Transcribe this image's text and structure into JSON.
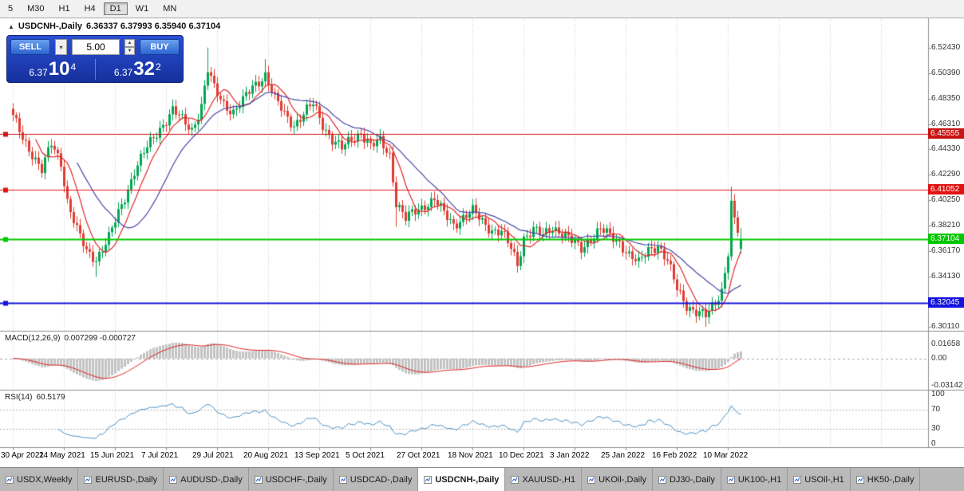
{
  "icons": {
    "collapse": "▲",
    "dropdown": "▾",
    "spin_up": "▲",
    "spin_down": "▼"
  },
  "toolbar": {
    "timeframes": [
      "5",
      "M30",
      "H1",
      "H4",
      "D1",
      "W1",
      "MN"
    ],
    "active": "D1"
  },
  "chart_header": {
    "title": "USDCNH-,Daily",
    "ohlc": "6.36337 6.37993 6.35940 6.37104"
  },
  "trade_panel": {
    "sell_label": "SELL",
    "buy_label": "BUY",
    "volume": "5.00",
    "sell_price": {
      "small": "6.37",
      "big": "10",
      "sup": "4"
    },
    "buy_price": {
      "small": "6.37",
      "big": "32",
      "sup": "2"
    }
  },
  "price_axis": {
    "labels": [
      [
        "6.52430",
        6.5243
      ],
      [
        "6.50390",
        6.5039
      ],
      [
        "6.48350",
        6.4835
      ],
      [
        "6.46310",
        6.4631
      ],
      [
        "6.44330",
        6.4433
      ],
      [
        "6.42290",
        6.4229
      ],
      [
        "6.40250",
        6.4025
      ],
      [
        "6.38210",
        6.3821
      ],
      [
        "6.36170",
        6.3617
      ],
      [
        "6.34130",
        6.3413
      ],
      [
        "6.32110",
        6.3211
      ],
      [
        "6.30110",
        6.3011
      ]
    ]
  },
  "macd_panel": {
    "name": "MACD(12,26,9)",
    "values": "0.007299 -0.000727",
    "axis": [
      [
        "0.01658",
        0.01658
      ],
      [
        "0.00",
        0
      ],
      [
        "-0.03142",
        -0.03142
      ]
    ]
  },
  "rsi_panel": {
    "name": "RSI(14)",
    "value": "60.5179",
    "axis": [
      [
        "100",
        100
      ],
      [
        "70",
        70
      ],
      [
        "30",
        30
      ],
      [
        "0",
        0
      ]
    ],
    "levels": [
      70,
      30
    ]
  },
  "date_axis": {
    "ticks": [
      {
        "label": "30 Apr 2021",
        "i": 0
      },
      {
        "label": "24 May 2021",
        "i": 16
      },
      {
        "label": "15 Jun 2021",
        "i": 32
      },
      {
        "label": "7 Jul 2021",
        "i": 48
      },
      {
        "label": "29 Jul 2021",
        "i": 64
      },
      {
        "label": "20 Aug 2021",
        "i": 80
      },
      {
        "label": "13 Sep 2021",
        "i": 96
      },
      {
        "label": "5 Oct 2021",
        "i": 112
      },
      {
        "label": "27 Oct 2021",
        "i": 128
      },
      {
        "label": "18 Nov 2021",
        "i": 144
      },
      {
        "label": "10 Dec 2021",
        "i": 160
      },
      {
        "label": "3 Jan 2022",
        "i": 176
      },
      {
        "label": "25 Jan 2022",
        "i": 192
      },
      {
        "label": "16 Feb 2022",
        "i": 208
      },
      {
        "label": "10 Mar 2022",
        "i": 224
      }
    ]
  },
  "tabs": [
    {
      "label": "USDX,Weekly",
      "active": false
    },
    {
      "label": "EURUSD-,Daily",
      "active": false
    },
    {
      "label": "AUDUSD-,Daily",
      "active": false
    },
    {
      "label": "USDCHF-,Daily",
      "active": false
    },
    {
      "label": "USDCAD-,Daily",
      "active": false
    },
    {
      "label": "USDCNH-,Daily",
      "active": true
    },
    {
      "label": "XAUUSD-,H1",
      "active": false
    },
    {
      "label": "UKOil-,Daily",
      "active": false
    },
    {
      "label": "DJ30-,Daily",
      "active": false
    },
    {
      "label": "UK100-,H1",
      "active": false
    },
    {
      "label": "USOil-,H1",
      "active": false
    },
    {
      "label": "HK50-,Daily",
      "active": false
    }
  ],
  "chart_data": {
    "type": "candlestick",
    "title": "USDCNH-,Daily",
    "last_bar": {
      "open": 6.36337,
      "high": 6.37993,
      "low": 6.3594,
      "close": 6.37104
    },
    "y_range": [
      6.2979,
      6.547
    ],
    "bar_count": 229,
    "close_anchors": [
      [
        0,
        6.468
      ],
      [
        3,
        6.452
      ],
      [
        6,
        6.44
      ],
      [
        9,
        6.426
      ],
      [
        12,
        6.447
      ],
      [
        15,
        6.433
      ],
      [
        17,
        6.402
      ],
      [
        20,
        6.378
      ],
      [
        23,
        6.361
      ],
      [
        26,
        6.356
      ],
      [
        30,
        6.372
      ],
      [
        34,
        6.398
      ],
      [
        38,
        6.426
      ],
      [
        42,
        6.444
      ],
      [
        46,
        6.46
      ],
      [
        50,
        6.474
      ],
      [
        53,
        6.466
      ],
      [
        56,
        6.459
      ],
      [
        59,
        6.478
      ],
      [
        61,
        6.506
      ],
      [
        63,
        6.491
      ],
      [
        66,
        6.48
      ],
      [
        69,
        6.473
      ],
      [
        72,
        6.481
      ],
      [
        75,
        6.493
      ],
      [
        79,
        6.503
      ],
      [
        82,
        6.483
      ],
      [
        85,
        6.471
      ],
      [
        88,
        6.463
      ],
      [
        91,
        6.471
      ],
      [
        94,
        6.479
      ],
      [
        97,
        6.463
      ],
      [
        100,
        6.451
      ],
      [
        103,
        6.443
      ],
      [
        106,
        6.451
      ],
      [
        109,
        6.457
      ],
      [
        112,
        6.445
      ],
      [
        115,
        6.449
      ],
      [
        118,
        6.439
      ],
      [
        120,
        6.401
      ],
      [
        123,
        6.387
      ],
      [
        126,
        6.393
      ],
      [
        129,
        6.399
      ],
      [
        132,
        6.403
      ],
      [
        135,
        6.391
      ],
      [
        138,
        6.383
      ],
      [
        141,
        6.389
      ],
      [
        144,
        6.393
      ],
      [
        147,
        6.385
      ],
      [
        150,
        6.379
      ],
      [
        153,
        6.377
      ],
      [
        156,
        6.363
      ],
      [
        158,
        6.351
      ],
      [
        160,
        6.373
      ],
      [
        163,
        6.379
      ],
      [
        166,
        6.373
      ],
      [
        169,
        6.381
      ],
      [
        172,
        6.377
      ],
      [
        175,
        6.369
      ],
      [
        178,
        6.363
      ],
      [
        181,
        6.373
      ],
      [
        184,
        6.379
      ],
      [
        187,
        6.373
      ],
      [
        190,
        6.369
      ],
      [
        193,
        6.359
      ],
      [
        196,
        6.351
      ],
      [
        199,
        6.363
      ],
      [
        202,
        6.367
      ],
      [
        205,
        6.353
      ],
      [
        208,
        6.331
      ],
      [
        211,
        6.319
      ],
      [
        214,
        6.313
      ],
      [
        217,
        6.309
      ],
      [
        220,
        6.321
      ],
      [
        222,
        6.331
      ],
      [
        224,
        6.361
      ],
      [
        225,
        6.399
      ],
      [
        226,
        6.385
      ],
      [
        227,
        6.377
      ],
      [
        228,
        6.371
      ]
    ],
    "overrides": {
      "26": {
        "l": 6.341
      },
      "61": {
        "h": 6.5243
      },
      "79": {
        "h": 6.515
      },
      "120": {
        "l": 6.381
      },
      "217": {
        "l": 6.3011
      },
      "225": {
        "h": 6.4132
      },
      "228": {
        "o": 6.36337,
        "h": 6.37993,
        "l": 6.3594,
        "c": 6.37104
      }
    },
    "hlines": [
      {
        "price": 6.45555,
        "label": "6.45555",
        "color": "#c81414",
        "width": 1
      },
      {
        "price": 6.41052,
        "label": "6.41052",
        "color": "#e01414",
        "width": 1
      },
      {
        "price": 6.37104,
        "label": "6.37104",
        "color": "#00c800",
        "width": 2
      },
      {
        "price": 6.32045,
        "label": "6.32045",
        "color": "#1414dc",
        "width": 2
      }
    ],
    "ma": [
      {
        "period": 8,
        "color": "#e02828"
      },
      {
        "period": 21,
        "color": "#4646a8"
      }
    ],
    "macd": {
      "fast": 12,
      "slow": 26,
      "signal": 9,
      "current": 0.007299,
      "signal_current": -0.000727,
      "range": [
        -0.036,
        0.03
      ],
      "hist_color": "#c2c2c2",
      "signal_color": "#e02020"
    },
    "rsi": {
      "period": 14,
      "current": 60.5179,
      "color": "#4a8fc0",
      "levels": [
        70,
        30
      ]
    },
    "candle_colors": {
      "up": "#00a651",
      "down": "#e03c32"
    },
    "grid_color": "#cdcdcd"
  }
}
